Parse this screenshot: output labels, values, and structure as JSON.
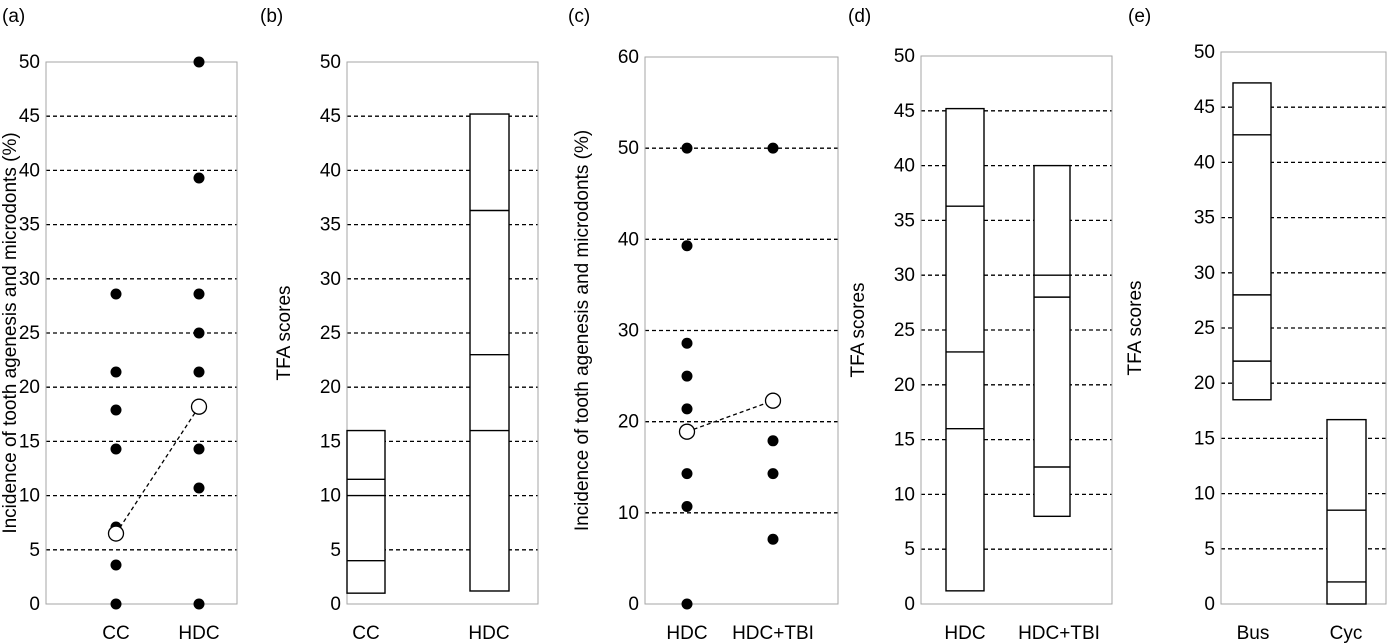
{
  "chart_data": [
    {
      "panel": "(a)",
      "type": "scatter",
      "ylabel": "Incidence of tooth agenesis and microdonts (%)",
      "categories": [
        "CC",
        "HDC"
      ],
      "ylim": [
        0,
        50
      ],
      "ytick_step": 5,
      "grid": true,
      "points": [
        {
          "x": "CC",
          "values": [
            28.6,
            21.4,
            17.9,
            14.3,
            7.1,
            3.6,
            0
          ]
        },
        {
          "x": "HDC",
          "values": [
            50,
            39.3,
            28.6,
            25,
            21.4,
            14.3,
            10.7,
            0
          ]
        }
      ],
      "means": [
        6.5,
        18.2
      ]
    },
    {
      "panel": "(b)",
      "type": "box",
      "ylabel": "TFA scores",
      "categories": [
        "CC",
        "HDC"
      ],
      "ylim": [
        0,
        50
      ],
      "ytick_step": 5,
      "grid": true,
      "boxes": [
        {
          "category": "CC",
          "min": 1,
          "max": 16,
          "lines": [
            4,
            10,
            11.5
          ]
        },
        {
          "category": "HDC",
          "min": 1.2,
          "max": 45.2,
          "lines": [
            16,
            23,
            36.3
          ]
        }
      ]
    },
    {
      "panel": "(c)",
      "type": "scatter",
      "ylabel": "Incidence of tooth agenesis and microdonts (%)",
      "categories": [
        "HDC",
        "HDC+TBI"
      ],
      "ylim": [
        0,
        60
      ],
      "ytick_step": 10,
      "grid": true,
      "points": [
        {
          "x": "HDC",
          "values": [
            50,
            39.3,
            28.6,
            25,
            21.4,
            14.3,
            10.7,
            0
          ]
        },
        {
          "x": "HDC+TBI",
          "values": [
            50,
            17.9,
            14.3,
            7.1
          ]
        }
      ],
      "means": [
        18.9,
        22.3
      ]
    },
    {
      "panel": "(d)",
      "type": "box",
      "ylabel": "TFA scores",
      "categories": [
        "HDC",
        "HDC+TBI"
      ],
      "ylim": [
        0,
        50
      ],
      "ytick_step": 5,
      "grid": true,
      "boxes": [
        {
          "category": "HDC",
          "min": 1.2,
          "max": 45.2,
          "lines": [
            16,
            23,
            36.3
          ]
        },
        {
          "category": "HDC+TBI",
          "min": 8,
          "max": 40,
          "lines": [
            12.5,
            28,
            30
          ]
        }
      ]
    },
    {
      "panel": "(e)",
      "type": "box",
      "ylabel": "TFA scores",
      "categories": [
        "Bus",
        "Cyc"
      ],
      "ylim": [
        0,
        50
      ],
      "ytick_step": 5,
      "grid": true,
      "boxes": [
        {
          "category": "Bus",
          "min": 18.5,
          "max": 47.2,
          "lines": [
            22,
            28,
            42.5
          ]
        },
        {
          "category": "Cyc",
          "min": 0,
          "max": 16.7,
          "lines": [
            2,
            8.5
          ]
        }
      ]
    }
  ]
}
